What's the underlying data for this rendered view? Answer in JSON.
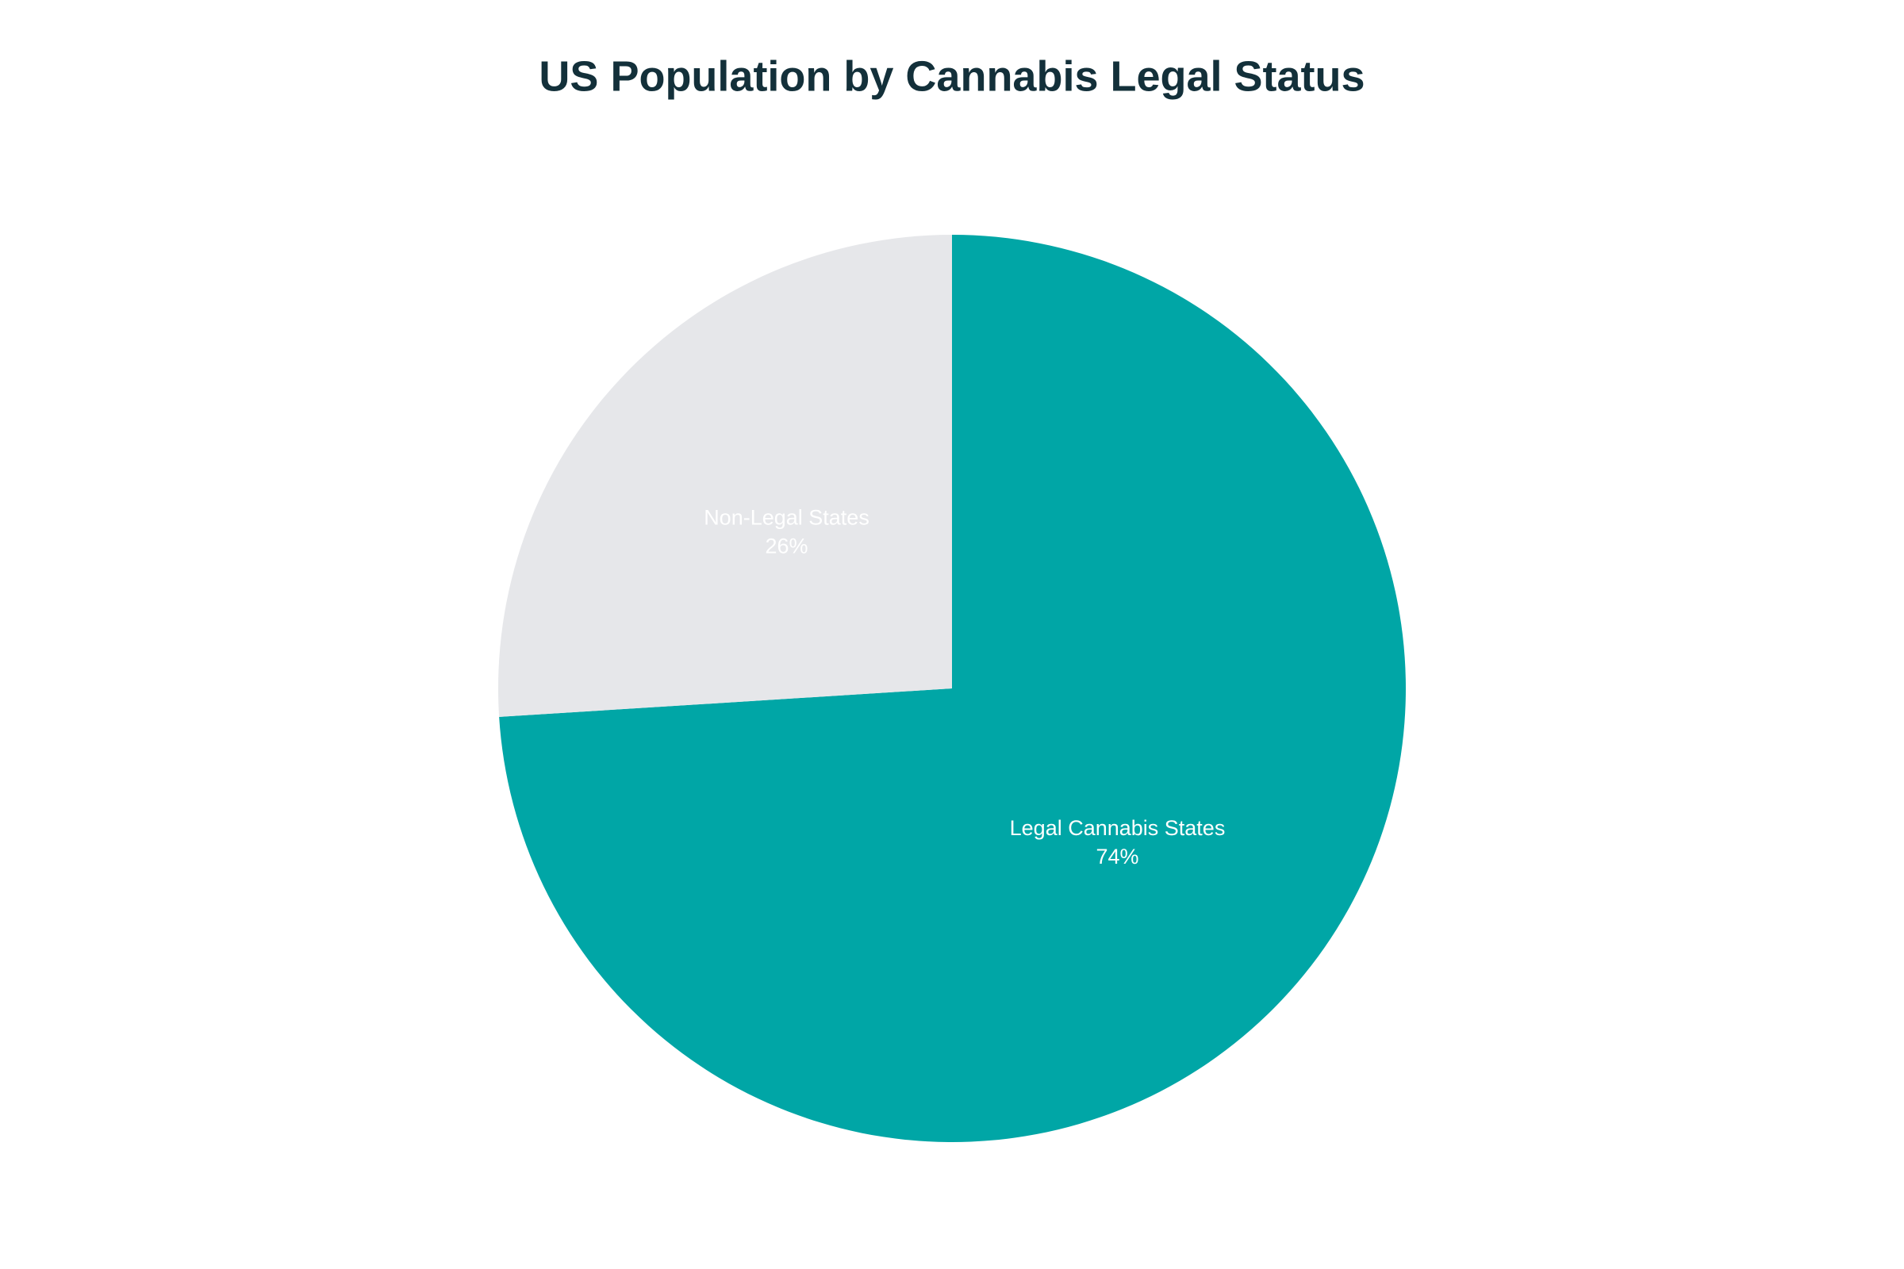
{
  "chart_data": {
    "type": "pie",
    "title": "US Population by Cannabis Legal Status",
    "categories": [
      "Legal Cannabis States",
      "Non-Legal States"
    ],
    "values": [
      74,
      26
    ],
    "value_labels": [
      "74%",
      "26%"
    ],
    "colors": [
      "#00a6a6",
      "#e6e7ea"
    ]
  }
}
